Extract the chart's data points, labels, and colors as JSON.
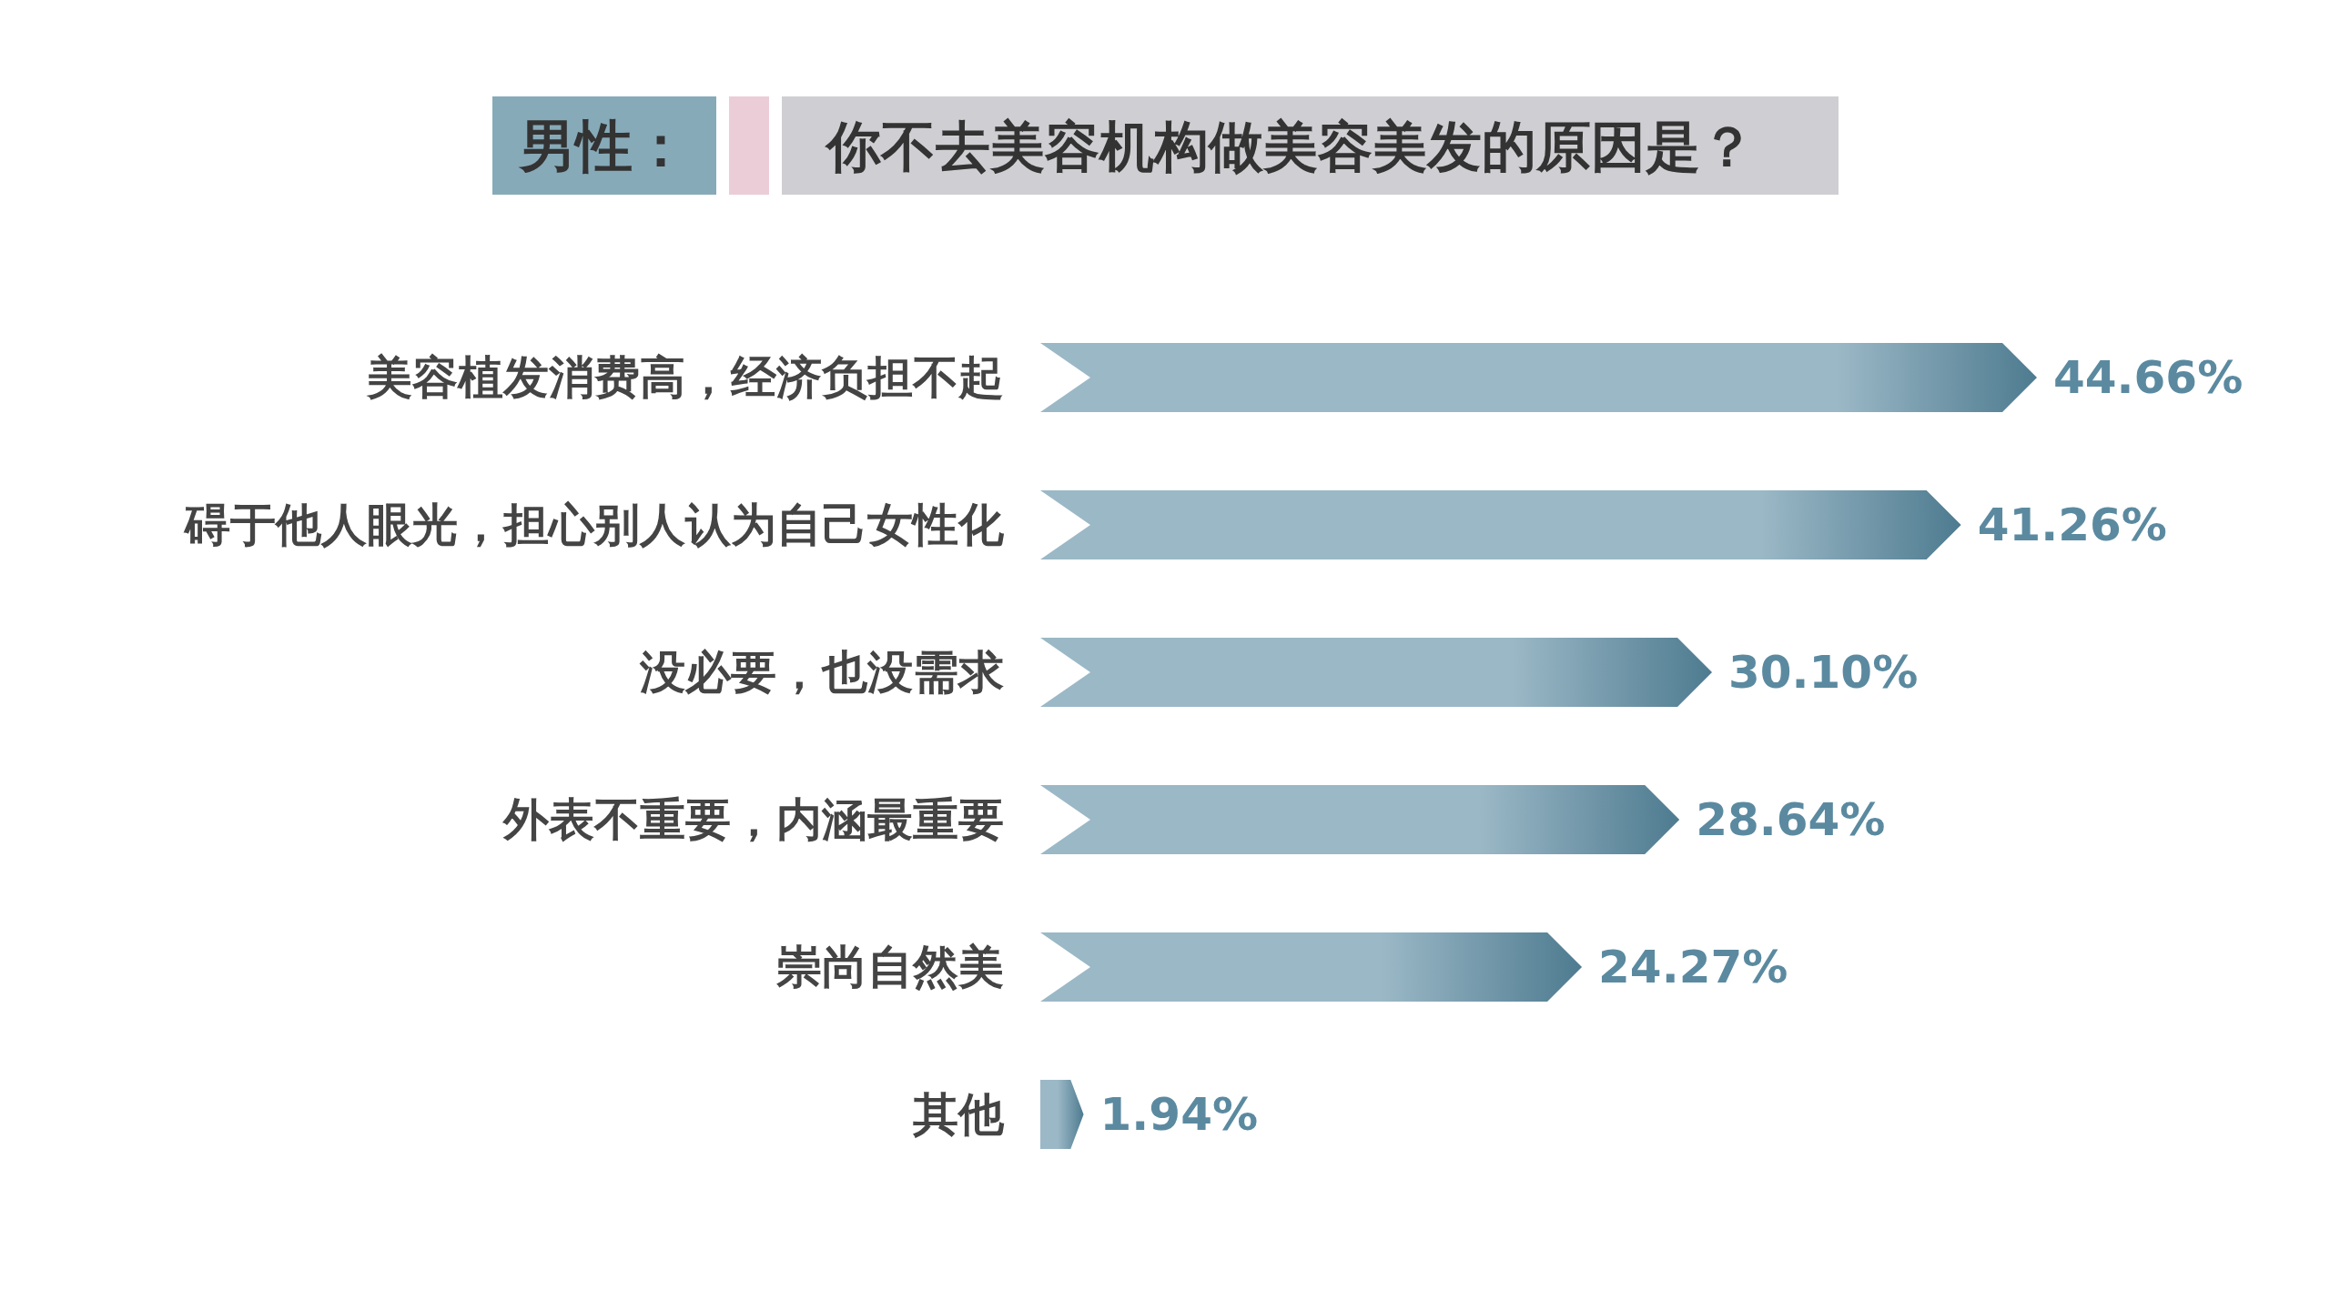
{
  "chart_data": {
    "type": "bar",
    "orientation": "horizontal",
    "title": "男性：",
    "subtitle": "你不去美容机构做美容美发的原因是？",
    "categories": [
      "美容植发消费高，经济负担不起",
      "碍于他人眼光，担心别人认为自己女性化",
      "没必要，也没需求",
      "外表不重要，内涵最重要",
      "崇尚自然美",
      "其他"
    ],
    "values": [
      44.66,
      41.26,
      30.1,
      28.64,
      24.27,
      1.94
    ],
    "value_labels": [
      "44.66%",
      "41.26%",
      "30.10%",
      "28.64%",
      "24.27%",
      "1.94%"
    ],
    "colors": [
      "#4e7b90",
      "#4e7b90",
      "#4e7b90",
      "#4e7b90",
      "#4e7b90",
      "#4e7b90"
    ]
  }
}
